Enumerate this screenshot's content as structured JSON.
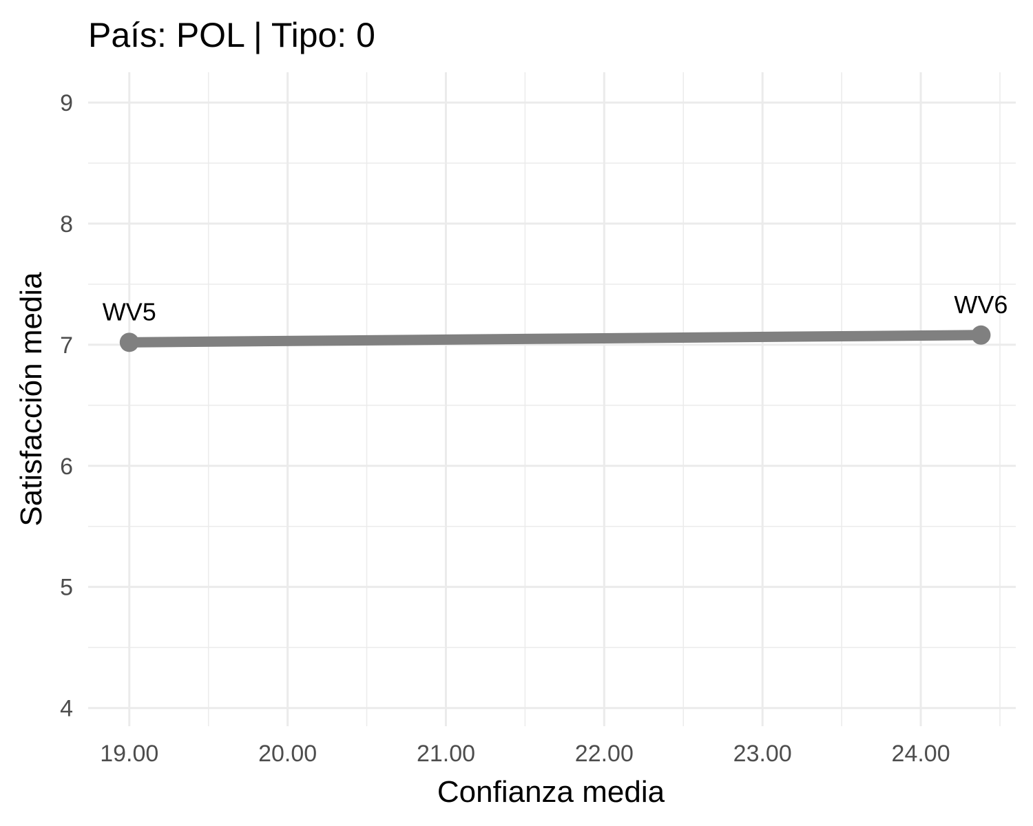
{
  "chart_data": {
    "type": "line",
    "title": "País: POL | Tipo: 0",
    "xlabel": "Confianza media",
    "ylabel": "Satisfacción media",
    "xlim": [
      18.74,
      24.6
    ],
    "ylim": [
      3.85,
      9.25
    ],
    "x_ticks": [
      19,
      20,
      21,
      22,
      23,
      24
    ],
    "x_tick_labels": [
      "19.00",
      "20.00",
      "21.00",
      "22.00",
      "23.00",
      "24.00"
    ],
    "y_ticks": [
      4,
      5,
      6,
      7,
      8,
      9
    ],
    "y_tick_labels": [
      "4",
      "5",
      "6",
      "7",
      "8",
      "9"
    ],
    "grid": true,
    "legend": "none",
    "series": [
      {
        "color": "#808080",
        "points": [
          {
            "x": 19.0,
            "y": 7.02,
            "label": "WV5"
          },
          {
            "x": 24.38,
            "y": 7.08,
            "label": "WV6"
          }
        ]
      }
    ]
  }
}
